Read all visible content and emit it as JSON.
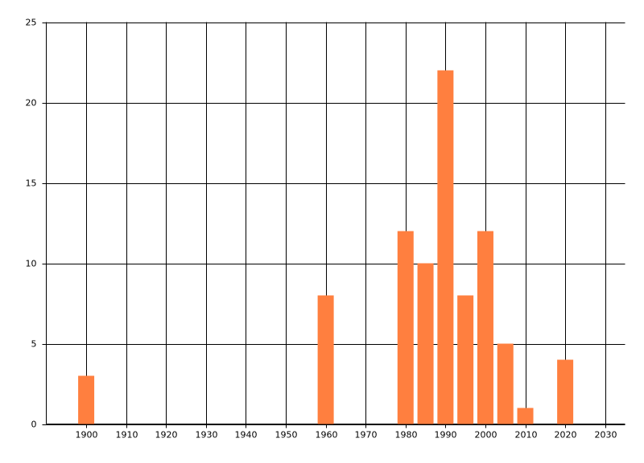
{
  "chart_data": {
    "type": "bar",
    "x": [
      1900,
      1960,
      1980,
      1985,
      1990,
      1995,
      2000,
      2005,
      2010,
      2020
    ],
    "values": [
      3,
      8,
      12,
      10,
      22,
      8,
      12,
      5,
      1,
      4
    ],
    "color": "#ff7f3f",
    "xlim": [
      1890,
      2035
    ],
    "xticks": [
      1900,
      1910,
      1920,
      1930,
      1940,
      1950,
      1960,
      1970,
      1980,
      1990,
      2000,
      2010,
      2020,
      2030
    ],
    "ylim": [
      0,
      25
    ],
    "yticks": [
      0,
      5,
      10,
      15,
      20,
      25
    ],
    "grid": true
  }
}
